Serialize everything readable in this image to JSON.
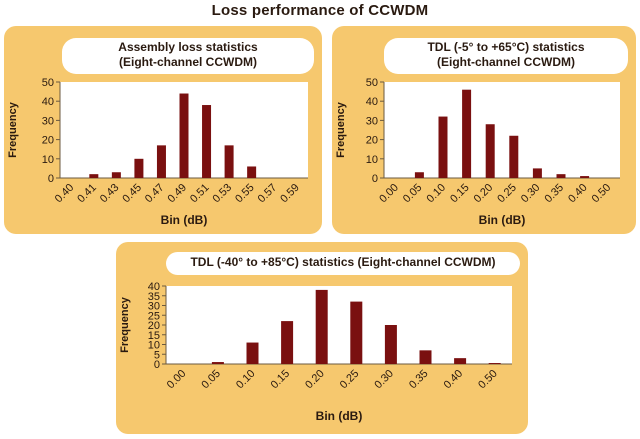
{
  "figure": {
    "title": "Loss performance of CCWDM"
  },
  "colors": {
    "panel": "#f6c86e",
    "bar": "#7a1010",
    "plot": "#ffffff",
    "axis": "#6b5a40"
  },
  "chart_data": [
    {
      "type": "bar",
      "title": [
        "Assembly loss statistics",
        "(Eight-channel CCWDM)"
      ],
      "xlabel": "Bin (dB)",
      "ylabel": "Frequency",
      "ylim": [
        0,
        50
      ],
      "yticks": [
        0,
        10,
        20,
        30,
        40,
        50
      ],
      "categories": [
        "0.40",
        "0.41",
        "0.43",
        "0.45",
        "0.47",
        "0.49",
        "0.51",
        "0.53",
        "0.55",
        "0.57",
        "0.59"
      ],
      "values": [
        0,
        2,
        3,
        10,
        17,
        44,
        38,
        17,
        6,
        0,
        0
      ],
      "grid": false,
      "legend": "none"
    },
    {
      "type": "bar",
      "title": [
        "TDL (-5° to +65°C) statistics",
        "(Eight-channel CCWDM)"
      ],
      "xlabel": "Bin (dB)",
      "ylabel": "Frequency",
      "ylim": [
        0,
        50
      ],
      "yticks": [
        0,
        10,
        20,
        30,
        40,
        50
      ],
      "categories": [
        "0.00",
        "0.05",
        "0.10",
        "0.15",
        "0.20",
        "0.25",
        "0.30",
        "0.35",
        "0.40",
        "0.50"
      ],
      "values": [
        0,
        3,
        32,
        46,
        28,
        22,
        5,
        2,
        1,
        0
      ],
      "grid": false,
      "legend": "none"
    },
    {
      "type": "bar",
      "title": [
        "TDL (-40° to +85°C) statistics (Eight-channel CCWDM)"
      ],
      "xlabel": "Bin (dB)",
      "ylabel": "Frequency",
      "ylim": [
        0,
        40
      ],
      "yticks": [
        0,
        5,
        10,
        15,
        20,
        25,
        30,
        35,
        40
      ],
      "categories": [
        "0.00",
        "0.05",
        "0.10",
        "0.15",
        "0.20",
        "0.25",
        "0.30",
        "0.35",
        "0.40",
        "0.50"
      ],
      "values": [
        0,
        1,
        11,
        22,
        38,
        32,
        20,
        7,
        3,
        0.5
      ],
      "grid": false,
      "legend": "none"
    }
  ]
}
